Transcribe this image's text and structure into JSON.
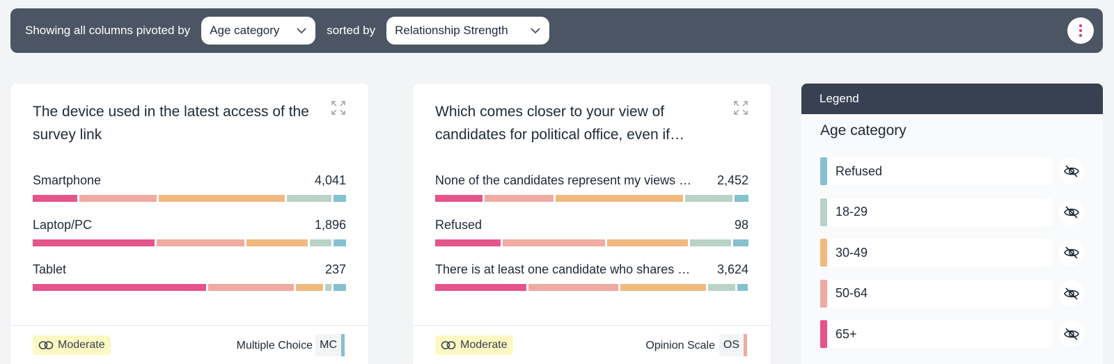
{
  "toolbar": {
    "prefix": "Showing all columns pivoted by",
    "pivot_value": "Age category",
    "sorted_label": "sorted by",
    "sort_value": "Relationship Strength",
    "menu_icon": "kebab-vertical-icon"
  },
  "colors": {
    "refused": "#85c1cf",
    "age_18_29": "#b9d3c6",
    "age_30_49": "#f2b97f",
    "age_50_64": "#efaaa2",
    "age_65_plus": "#e5548a"
  },
  "cards": [
    {
      "title": "The device used in the latest access of the survey link",
      "rows": [
        {
          "label": "Smartphone",
          "value": "4,041",
          "shares": [
            0.145,
            0.255,
            0.415,
            0.145,
            0.04
          ]
        },
        {
          "label": "Laptop/PC",
          "value": "1,896",
          "shares": [
            0.4,
            0.29,
            0.2,
            0.07,
            0.04
          ]
        },
        {
          "label": "Tablet",
          "value": "237",
          "shares": [
            0.57,
            0.28,
            0.09,
            0.02,
            0.04
          ]
        }
      ],
      "strength": "Moderate",
      "question_type": "Multiple Choice",
      "question_code": "MC",
      "code_color": "#85c1cf"
    },
    {
      "title": "Which comes closer to your view of candidates for political office, even if…",
      "rows": [
        {
          "label": "None of the candidates represent my views …",
          "value": "2,452",
          "shares": [
            0.155,
            0.225,
            0.42,
            0.155,
            0.045
          ]
        },
        {
          "label": "Refused",
          "value": "98",
          "shares": [
            0.215,
            0.335,
            0.265,
            0.135,
            0.05
          ]
        },
        {
          "label": "There is at least one candidate who shares …",
          "value": "3,624",
          "shares": [
            0.3,
            0.295,
            0.28,
            0.09,
            0.035
          ]
        }
      ],
      "strength": "Moderate",
      "question_type": "Opinion Scale",
      "question_code": "OS",
      "code_color": "#efaaa2"
    }
  ],
  "legend": {
    "header": "Legend",
    "subtitle": "Age category",
    "items": [
      {
        "label": "Refused",
        "color": "#85c1cf"
      },
      {
        "label": "18-29",
        "color": "#b9d3c6"
      },
      {
        "label": "30-49",
        "color": "#f2b97f"
      },
      {
        "label": "50-64",
        "color": "#efaaa2"
      },
      {
        "label": "65+",
        "color": "#e5548a"
      }
    ]
  }
}
